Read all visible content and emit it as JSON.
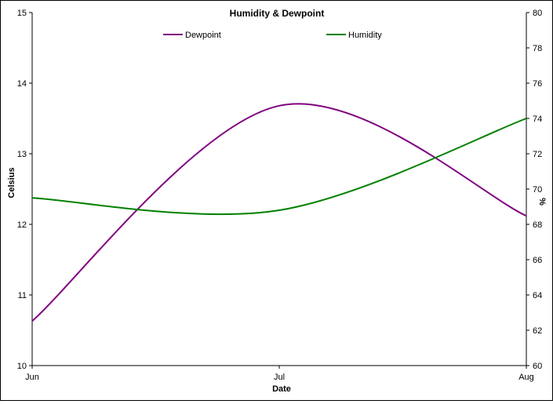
{
  "chart_data": {
    "type": "line",
    "title": "Humidity & Dewpoint",
    "xlabel": "Date",
    "ylabel_left": "Celsius",
    "ylabel_right": "%",
    "x": [
      "Jun",
      "Jul",
      "Aug"
    ],
    "x_ticks": [
      "Jun",
      "Jul",
      "Aug"
    ],
    "ylim_left": [
      10,
      15
    ],
    "yticks_left": [
      10,
      11,
      12,
      13,
      14,
      15
    ],
    "ylim_right": [
      60,
      80
    ],
    "yticks_right": [
      60,
      62,
      64,
      66,
      68,
      70,
      72,
      74,
      76,
      78,
      80
    ],
    "grid": false,
    "legend_placement": "top-center",
    "series": [
      {
        "name": "Dewpoint",
        "axis": "left",
        "color": "#800080",
        "values": [
          10.63,
          13.68,
          12.12
        ]
      },
      {
        "name": "Humidity",
        "axis": "right",
        "color": "#008000",
        "values": [
          69.5,
          68.8,
          74.0
        ]
      }
    ]
  }
}
